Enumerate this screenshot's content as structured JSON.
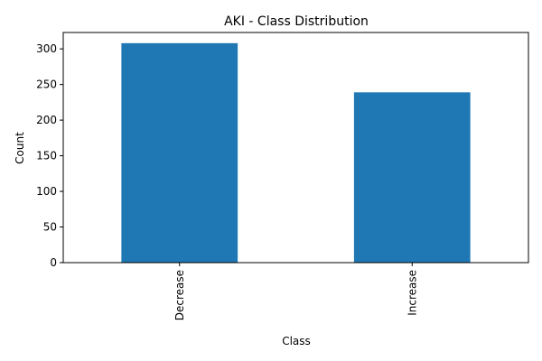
{
  "chart_data": {
    "type": "bar",
    "title": "AKI - Class Distribution",
    "xlabel": "Class",
    "ylabel": "Count",
    "categories": [
      "Decrease",
      "Increase"
    ],
    "values": [
      308,
      239
    ],
    "ylim": [
      0,
      323
    ],
    "yticks": [
      0,
      50,
      100,
      150,
      200,
      250,
      300
    ],
    "grid": false,
    "bar_color": "#1f77b4"
  }
}
